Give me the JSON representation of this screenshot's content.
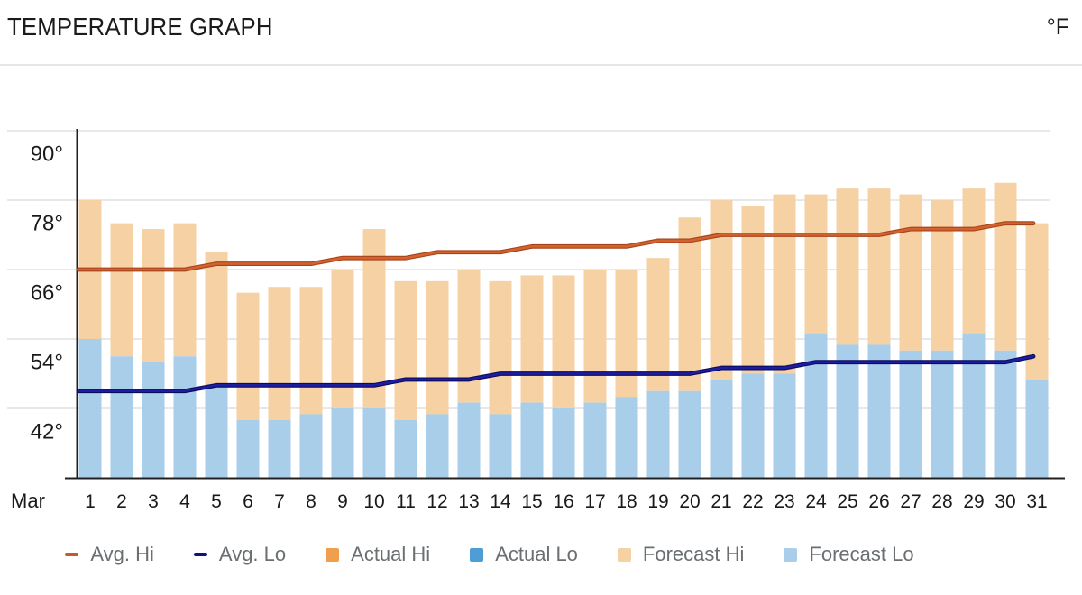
{
  "header": {
    "title": "TEMPERATURE GRAPH",
    "unit": "°F"
  },
  "chart_data": {
    "type": "bar",
    "title": "TEMPERATURE GRAPH",
    "unit": "°F",
    "x": {
      "month_label": "Mar",
      "days": [
        1,
        2,
        3,
        4,
        5,
        6,
        7,
        8,
        9,
        10,
        11,
        12,
        13,
        14,
        15,
        16,
        17,
        18,
        19,
        20,
        21,
        22,
        23,
        24,
        25,
        26,
        27,
        28,
        29,
        30,
        31
      ]
    },
    "y_axis": {
      "tick_values": [
        90,
        78,
        66,
        54,
        42
      ],
      "tick_suffix": "°",
      "min": 30,
      "max": 90,
      "grid": true
    },
    "series": [
      {
        "name": "Forecast Hi",
        "type": "bar",
        "color": "#f5d1a4",
        "values": [
          78,
          74,
          73,
          74,
          69,
          62,
          63,
          63,
          66,
          73,
          64,
          64,
          66,
          64,
          65,
          65,
          66,
          66,
          68,
          75,
          78,
          77,
          79,
          79,
          80,
          80,
          79,
          78,
          80,
          81,
          74
        ]
      },
      {
        "name": "Forecast Lo",
        "type": "bar",
        "color": "#a9cee9",
        "values": [
          54,
          51,
          50,
          51,
          46,
          40,
          40,
          41,
          42,
          42,
          40,
          41,
          43,
          41,
          43,
          42,
          43,
          44,
          45,
          45,
          47,
          48,
          48,
          55,
          53,
          53,
          52,
          52,
          55,
          52,
          47
        ]
      },
      {
        "name": "Avg. Hi",
        "type": "line",
        "color": "#c85b2b",
        "values": [
          66,
          66,
          66,
          66,
          67,
          67,
          67,
          67,
          68,
          68,
          68,
          69,
          69,
          69,
          70,
          70,
          70,
          70,
          71,
          71,
          72,
          72,
          72,
          72,
          72,
          72,
          73,
          73,
          73,
          74,
          74
        ]
      },
      {
        "name": "Avg. Lo",
        "type": "line",
        "color": "#10107e",
        "values": [
          45,
          45,
          45,
          45,
          46,
          46,
          46,
          46,
          46,
          46,
          47,
          47,
          47,
          48,
          48,
          48,
          48,
          48,
          48,
          48,
          49,
          49,
          49,
          50,
          50,
          50,
          50,
          50,
          50,
          50,
          51
        ]
      }
    ],
    "legend_position": "bottom",
    "legend": [
      {
        "label": "Avg. Hi",
        "marker": "line",
        "color": "#c85b2b"
      },
      {
        "label": "Avg. Lo",
        "marker": "line",
        "color": "#10107e"
      },
      {
        "label": "Actual Hi",
        "marker": "square",
        "color": "#f0a04c"
      },
      {
        "label": "Actual Lo",
        "marker": "square",
        "color": "#4f9dd5"
      },
      {
        "label": "Forecast Hi",
        "marker": "square",
        "color": "#f5d1a4"
      },
      {
        "label": "Forecast Lo",
        "marker": "square",
        "color": "#a9cee9"
      }
    ],
    "colors": {
      "grid": "#dadada",
      "axis": "#202020",
      "tick_text": "#1a1a1a",
      "legend_text": "#6a6f72"
    }
  }
}
